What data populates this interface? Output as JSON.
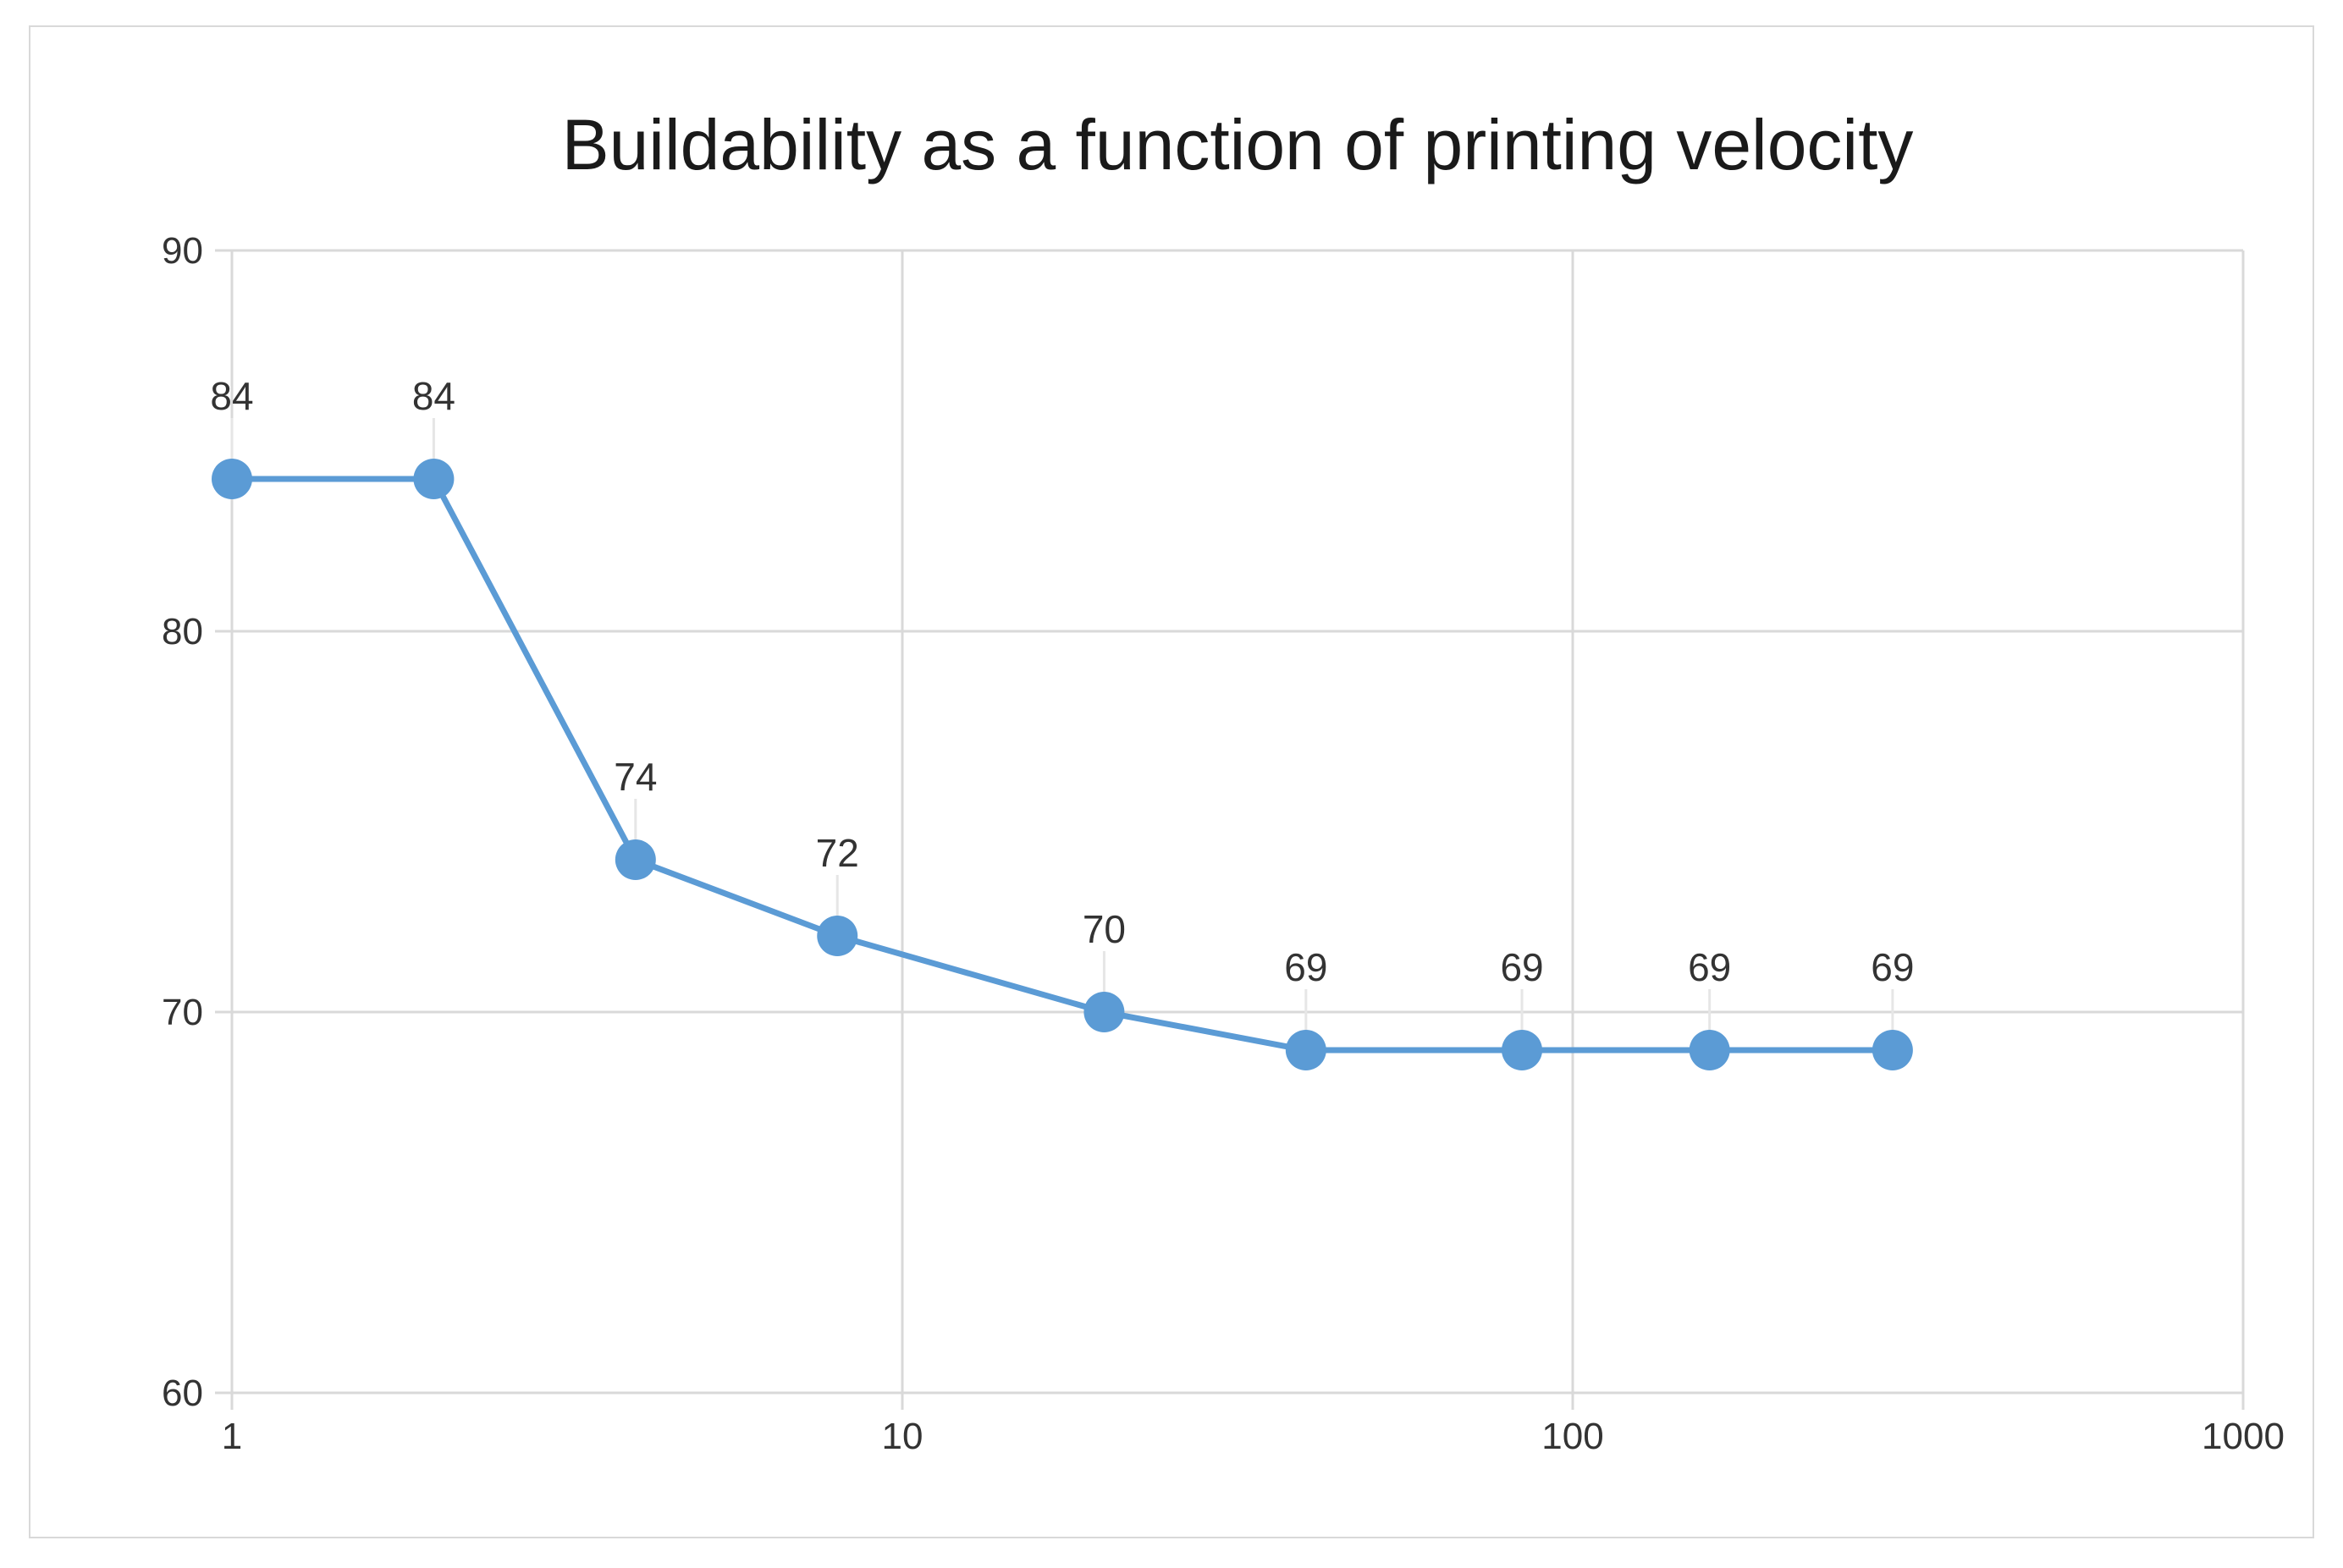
{
  "chart_data": {
    "type": "line",
    "title": "Buildability as a function of printing velocity",
    "xlabel": "",
    "ylabel": "",
    "x_scale": "log",
    "xlim": [
      1,
      1000
    ],
    "ylim": [
      60,
      90
    ],
    "x_ticks": [
      "1",
      "10",
      "100",
      "1000"
    ],
    "y_ticks": [
      "60",
      "70",
      "80",
      "90"
    ],
    "grid": true,
    "legend": "none",
    "color": "#5b9bd5",
    "x": [
      1,
      2,
      4,
      8,
      20,
      40,
      84,
      160,
      300
    ],
    "values": [
      84,
      84,
      74,
      72,
      70,
      69,
      69,
      69,
      69
    ]
  }
}
